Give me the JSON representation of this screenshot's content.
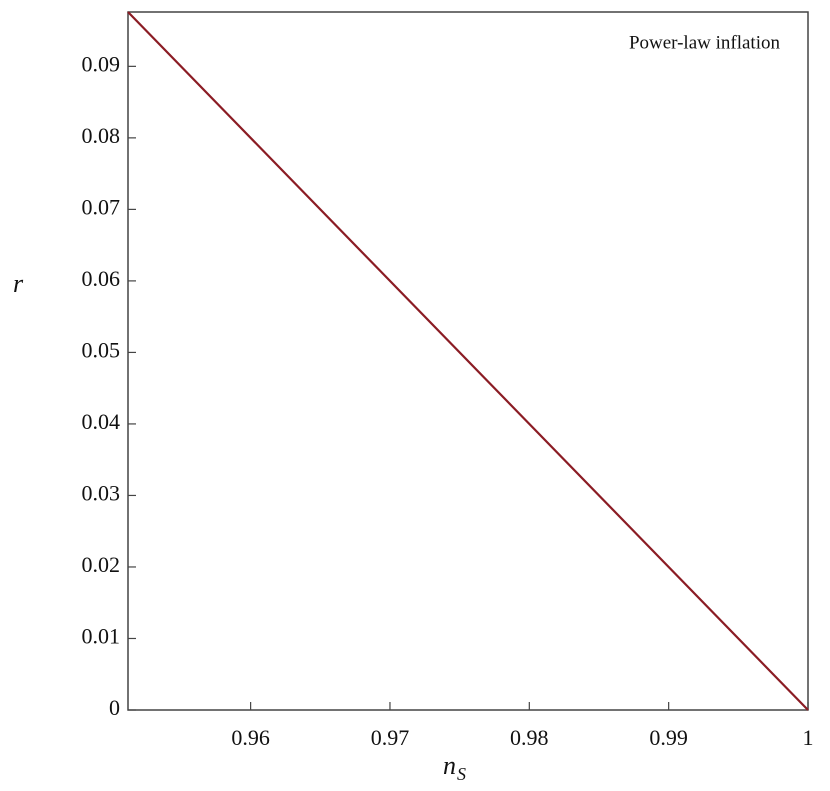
{
  "chart_data": {
    "type": "line",
    "annotation": "Power-law inflation",
    "xlabel": {
      "text": "n",
      "subscript": "S"
    },
    "ylabel": "r",
    "x": [
      0.9512,
      1
    ],
    "series": [
      {
        "color": "#8b1c24",
        "values": [
          0.0976,
          0
        ]
      }
    ],
    "xlim": [
      0.9512,
      1
    ],
    "ylim": [
      0,
      0.0976
    ],
    "xticks": [
      0.96,
      0.97,
      0.98,
      0.99,
      1
    ],
    "yticks": [
      0,
      0.01,
      0.02,
      0.03,
      0.04,
      0.05,
      0.06,
      0.07,
      0.08,
      0.09
    ]
  }
}
